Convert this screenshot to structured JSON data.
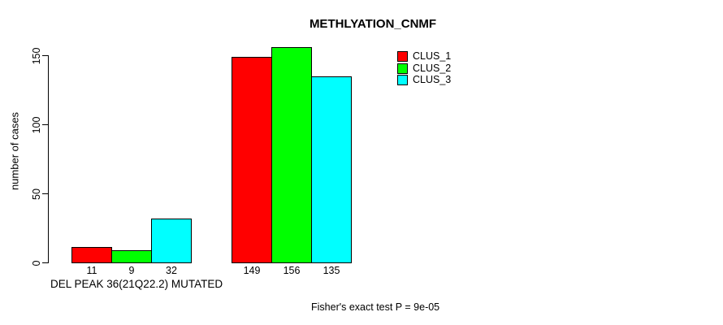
{
  "chart_data": {
    "type": "bar",
    "title": "METHLYATION_CNMF",
    "ylabel": "number of cases",
    "xlabel": "DEL PEAK 36(21Q22.2) MUTATED",
    "annotation": "Fisher's exact test P = 9e-05",
    "ylim": [
      0,
      150
    ],
    "yticks": [
      0,
      50,
      100,
      150
    ],
    "grid": false,
    "legend_position": "top-right",
    "groups": 2,
    "series": [
      {
        "name": "CLUS_1",
        "color": "#FF0000",
        "values": [
          11,
          149
        ]
      },
      {
        "name": "CLUS_2",
        "color": "#00FF00",
        "values": [
          9,
          156
        ]
      },
      {
        "name": "CLUS_3",
        "color": "#00FFFF",
        "values": [
          32,
          135
        ]
      }
    ],
    "bar_value_labels": [
      [
        "11",
        "9",
        "32"
      ],
      [
        "149",
        "156",
        "135"
      ]
    ]
  }
}
